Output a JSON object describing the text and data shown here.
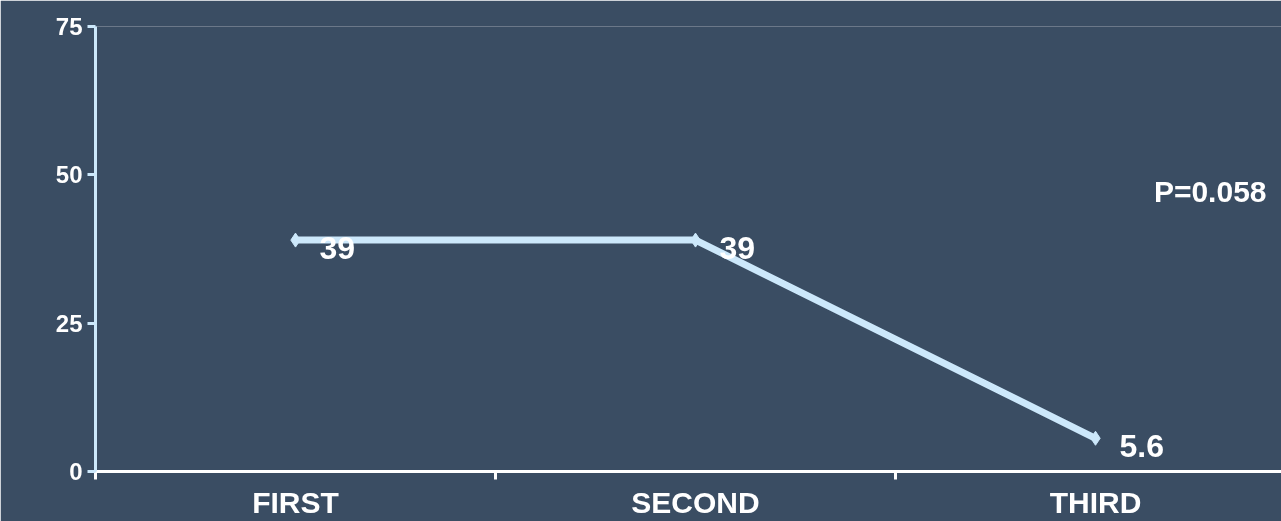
{
  "chart_data": {
    "type": "line",
    "categories": [
      "FIRST",
      "SECOND",
      "THIRD"
    ],
    "series": [
      {
        "color": "#cce8fb",
        "values": [
          39,
          39,
          5.6
        ]
      }
    ],
    "ylim": [
      0,
      75
    ],
    "yticks": [
      0,
      25,
      50,
      75
    ],
    "grid": false,
    "marker": "diamond",
    "line_style": "solid",
    "data_labels": true,
    "annotations": [
      "P=0.058"
    ]
  }
}
